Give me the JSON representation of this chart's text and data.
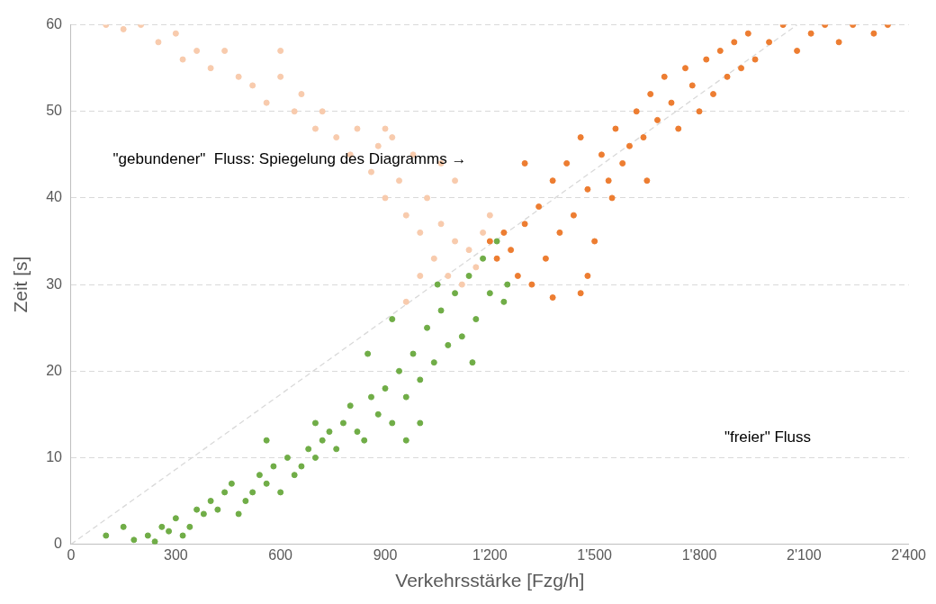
{
  "chart_data": {
    "type": "scatter",
    "xlabel": "Verkehrsstärke [Fzg/h]",
    "ylabel": "Zeit [s]",
    "xlim": [
      0,
      2400
    ],
    "xticks": [
      0,
      300,
      600,
      900,
      {
        "value": 1200,
        "label": "1'200"
      },
      {
        "value": 1500,
        "label": "1'500"
      },
      {
        "value": 1800,
        "label": "1'800"
      },
      {
        "value": 2100,
        "label": "2'100"
      },
      {
        "value": 2400,
        "label": "2'400"
      }
    ],
    "ylim": [
      0,
      60
    ],
    "yticks": [
      0,
      10,
      20,
      30,
      40,
      50,
      60
    ],
    "grid": "y",
    "legend": false,
    "marker": "circle",
    "annotations": [
      "\"gebundener\"  Fluss: Spiegelung des Diagramms →",
      "\"freier\" Fluss"
    ],
    "series": [
      {
        "color": "#f8cbad",
        "x": [
          100,
          150,
          200,
          250,
          300,
          320,
          360,
          400,
          440,
          480,
          520,
          560,
          600,
          640,
          660,
          700,
          720,
          760,
          800,
          820,
          860,
          880,
          900,
          920,
          940,
          960,
          980,
          1000,
          1020,
          1040,
          1060,
          1080,
          1100,
          1120,
          1140,
          1160,
          960,
          1000,
          1180,
          1200,
          1100,
          1060,
          900,
          600
        ],
        "values": [
          60,
          59.5,
          60,
          58,
          59,
          56,
          57,
          55,
          57,
          54,
          53,
          51,
          54,
          50,
          52,
          48,
          50,
          47,
          45,
          48,
          43,
          46,
          40,
          47,
          42,
          38,
          45,
          36,
          40,
          33,
          37,
          31,
          35,
          30,
          34,
          32,
          28,
          31,
          36,
          38,
          42,
          44,
          48,
          57
        ]
      },
      {
        "color": "#70ad47",
        "x": [
          100,
          150,
          180,
          220,
          240,
          260,
          280,
          300,
          320,
          340,
          360,
          380,
          400,
          420,
          440,
          460,
          480,
          500,
          520,
          540,
          560,
          580,
          600,
          620,
          640,
          660,
          680,
          700,
          720,
          740,
          760,
          780,
          800,
          820,
          840,
          860,
          880,
          900,
          920,
          940,
          960,
          980,
          1000,
          1020,
          1040,
          1060,
          1080,
          1100,
          1120,
          1140,
          1160,
          1180,
          1200,
          1220,
          1240,
          1250,
          1150,
          1000,
          850,
          920,
          1050,
          960,
          700,
          560
        ],
        "values": [
          1,
          2,
          0.5,
          1,
          0.3,
          2,
          1.5,
          3,
          1,
          2,
          4,
          3.5,
          5,
          4,
          6,
          7,
          3.5,
          5,
          6,
          8,
          7,
          9,
          6,
          10,
          8,
          9,
          11,
          10,
          12,
          13,
          11,
          14,
          16,
          13,
          12,
          17,
          15,
          18,
          14,
          20,
          17,
          22,
          19,
          25,
          21,
          27,
          23,
          29,
          24,
          31,
          26,
          33,
          29,
          35,
          28,
          30,
          21,
          14,
          22,
          26,
          30,
          12,
          14,
          12
        ]
      },
      {
        "color": "#ed7d31",
        "x": [
          1200,
          1220,
          1240,
          1260,
          1280,
          1300,
          1320,
          1340,
          1360,
          1380,
          1400,
          1420,
          1440,
          1460,
          1460,
          1480,
          1500,
          1520,
          1540,
          1560,
          1580,
          1600,
          1620,
          1640,
          1660,
          1680,
          1700,
          1720,
          1740,
          1760,
          1780,
          1800,
          1820,
          1840,
          1860,
          1880,
          1900,
          1920,
          1940,
          1960,
          2000,
          2040,
          2080,
          2120,
          2160,
          2200,
          2240,
          2300,
          2340,
          1300,
          1380,
          1480,
          1550,
          1650
        ],
        "values": [
          35,
          33,
          36,
          34,
          31,
          37,
          30,
          39,
          33,
          42,
          36,
          44,
          38,
          29,
          47,
          41,
          35,
          45,
          42,
          48,
          44,
          46,
          50,
          47,
          52,
          49,
          54,
          51,
          48,
          55,
          53,
          50,
          56,
          52,
          57,
          54,
          58,
          55,
          59,
          56,
          58,
          60,
          57,
          59,
          60,
          58,
          60,
          59,
          60,
          44,
          28.5,
          31,
          40,
          42
        ]
      },
      {
        "type": "line",
        "color": "#d9d9d9",
        "line_style": "dashed",
        "marker": "none",
        "x": [
          0,
          2080
        ],
        "values": [
          0,
          60
        ]
      }
    ]
  }
}
